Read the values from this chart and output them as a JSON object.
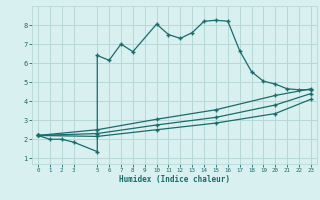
{
  "xlabel": "Humidex (Indice chaleur)",
  "bg_color": "#d8f0f0",
  "line_color": "#1a6b6b",
  "grid_color": "#b8d8d8",
  "xlim": [
    -0.5,
    23.5
  ],
  "ylim": [
    0.7,
    9.0
  ],
  "xticks": [
    0,
    1,
    2,
    3,
    5,
    6,
    7,
    8,
    9,
    10,
    11,
    12,
    13,
    14,
    15,
    16,
    17,
    18,
    19,
    20,
    21,
    22,
    23
  ],
  "yticks": [
    1,
    2,
    3,
    4,
    5,
    6,
    7,
    8
  ],
  "line1_x": [
    0,
    1,
    2,
    3,
    5,
    5,
    6,
    7,
    8,
    10,
    11,
    12,
    13,
    14,
    15,
    16,
    17,
    18,
    19,
    20,
    21,
    22,
    23
  ],
  "line1_y": [
    2.2,
    2.0,
    2.0,
    1.85,
    1.35,
    6.4,
    6.15,
    7.0,
    6.6,
    8.05,
    7.5,
    7.3,
    7.6,
    8.2,
    8.25,
    8.2,
    6.65,
    5.55,
    5.05,
    4.9,
    4.65,
    4.6,
    4.6
  ],
  "line2_x": [
    0,
    5,
    10,
    15,
    20,
    23
  ],
  "line2_y": [
    2.2,
    2.5,
    3.05,
    3.55,
    4.3,
    4.65
  ],
  "line3_x": [
    0,
    5,
    10,
    15,
    20,
    23
  ],
  "line3_y": [
    2.2,
    2.3,
    2.75,
    3.15,
    3.8,
    4.4
  ],
  "line4_x": [
    0,
    5,
    10,
    15,
    20,
    23
  ],
  "line4_y": [
    2.2,
    2.15,
    2.5,
    2.85,
    3.35,
    4.1
  ]
}
